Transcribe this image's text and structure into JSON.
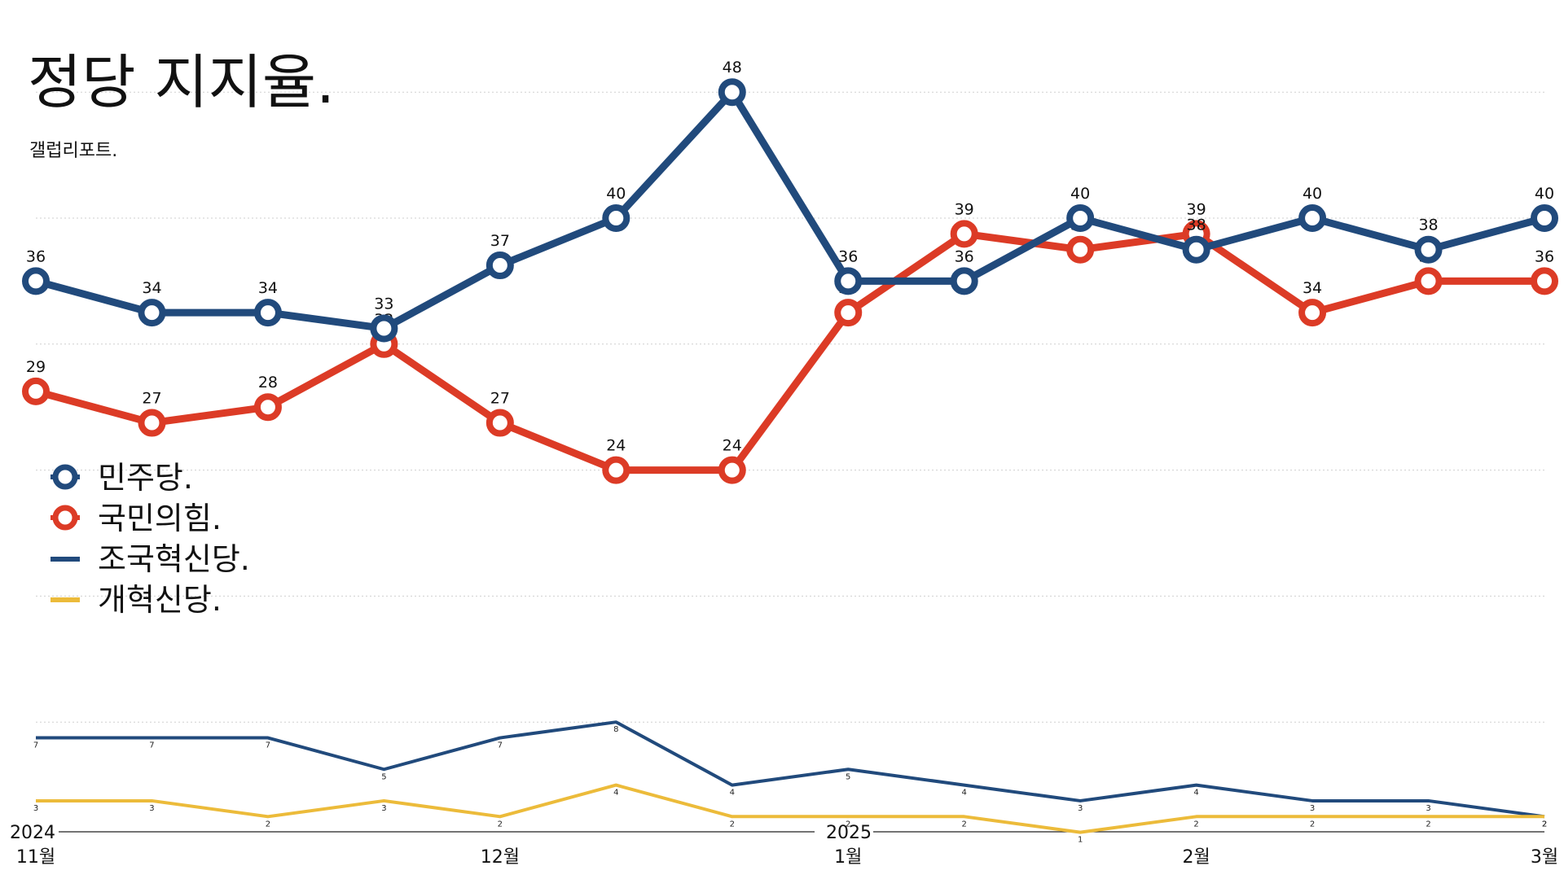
{
  "title": "정당 지지율.",
  "subtitle": "갤럽리포트.",
  "colors": {
    "minjoo": "#214a7c",
    "ppp": "#dc3b26",
    "rebuilding": "#214a7c",
    "reform": "#ecbb3a"
  },
  "legend": [
    {
      "label": "민주당.",
      "style": "marker"
    },
    {
      "label": "국민의힘.",
      "style": "marker"
    },
    {
      "label": "조국혁신당.",
      "style": "line"
    },
    {
      "label": "개혁신당.",
      "style": "line"
    }
  ],
  "x_axis": {
    "ticks": [
      "11월",
      "12월",
      "1월",
      "2월",
      "3월"
    ],
    "years": [
      "2024",
      "2025"
    ]
  },
  "chart_data": {
    "type": "line",
    "title": "정당 지지율.",
    "subtitle": "갤럽리포트.",
    "x": [
      "t1",
      "t2",
      "t3",
      "t4",
      "t5",
      "t6",
      "t7",
      "t8",
      "t9",
      "t10",
      "t11",
      "t12",
      "t13",
      "t14"
    ],
    "ylim": [
      0,
      50
    ],
    "grid": true,
    "legend_position": "left-middle",
    "series": [
      {
        "name": "민주당.",
        "values": [
          36,
          34,
          34,
          33,
          37,
          40,
          48,
          36,
          36,
          40,
          38,
          40,
          38,
          40
        ]
      },
      {
        "name": "국민의힘.",
        "values": [
          29,
          27,
          28,
          32,
          27,
          24,
          24,
          34,
          39,
          38,
          39,
          34,
          36,
          36
        ]
      },
      {
        "name": "조국혁신당.",
        "values": [
          7,
          7,
          7,
          5,
          7,
          8,
          4,
          5,
          4,
          3,
          4,
          3,
          3,
          2
        ]
      },
      {
        "name": "개혁신당.",
        "values": [
          3,
          3,
          2,
          3,
          2,
          4,
          2,
          2,
          2,
          1,
          2,
          2,
          2,
          2
        ]
      }
    ]
  }
}
